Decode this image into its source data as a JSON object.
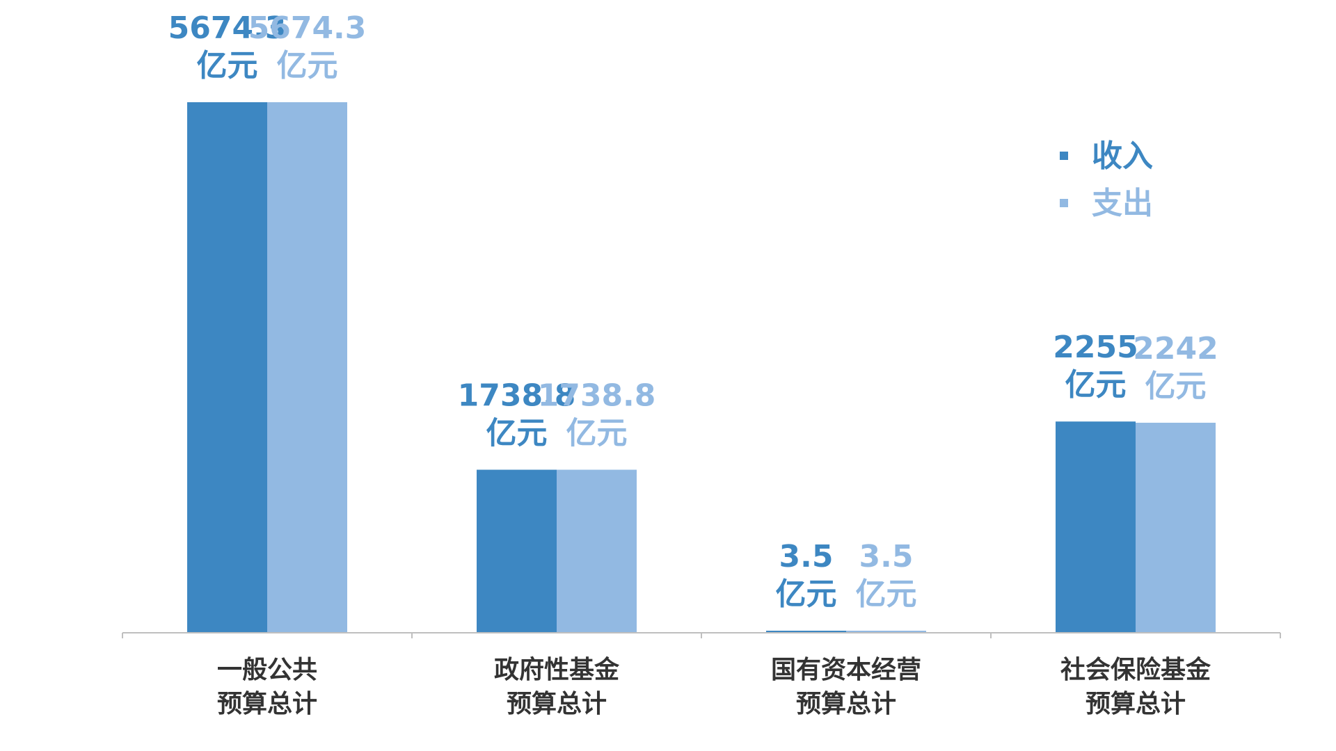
{
  "chart_data": {
    "type": "bar",
    "categories": [
      [
        "一般公共",
        "预算总计"
      ],
      [
        "政府性基金",
        "预算总计"
      ],
      [
        "国有资本经营",
        "预算总计"
      ],
      [
        "社会保险基金",
        "预算总计"
      ]
    ],
    "series": [
      {
        "name": "收入",
        "color": "#3d87c2",
        "values": [
          5674.3,
          1738.8,
          3.5,
          2255
        ],
        "labels": [
          [
            "5674.3",
            "亿元"
          ],
          [
            "1738.8",
            "亿元"
          ],
          [
            "3.5",
            "亿元"
          ],
          [
            "2255",
            "亿元"
          ]
        ]
      },
      {
        "name": "支出",
        "color": "#92b9e2",
        "values": [
          5674.3,
          1738.8,
          3.5,
          2242
        ],
        "labels": [
          [
            "5674.3",
            "亿元"
          ],
          [
            "1738.8",
            "亿元"
          ],
          [
            "3.5",
            "亿元"
          ],
          [
            "2242",
            "亿元"
          ]
        ]
      }
    ],
    "ylim": [
      0,
      5674.3
    ],
    "legend_position": "top-right",
    "grid": false,
    "axis_color": "#bfbfbf"
  }
}
